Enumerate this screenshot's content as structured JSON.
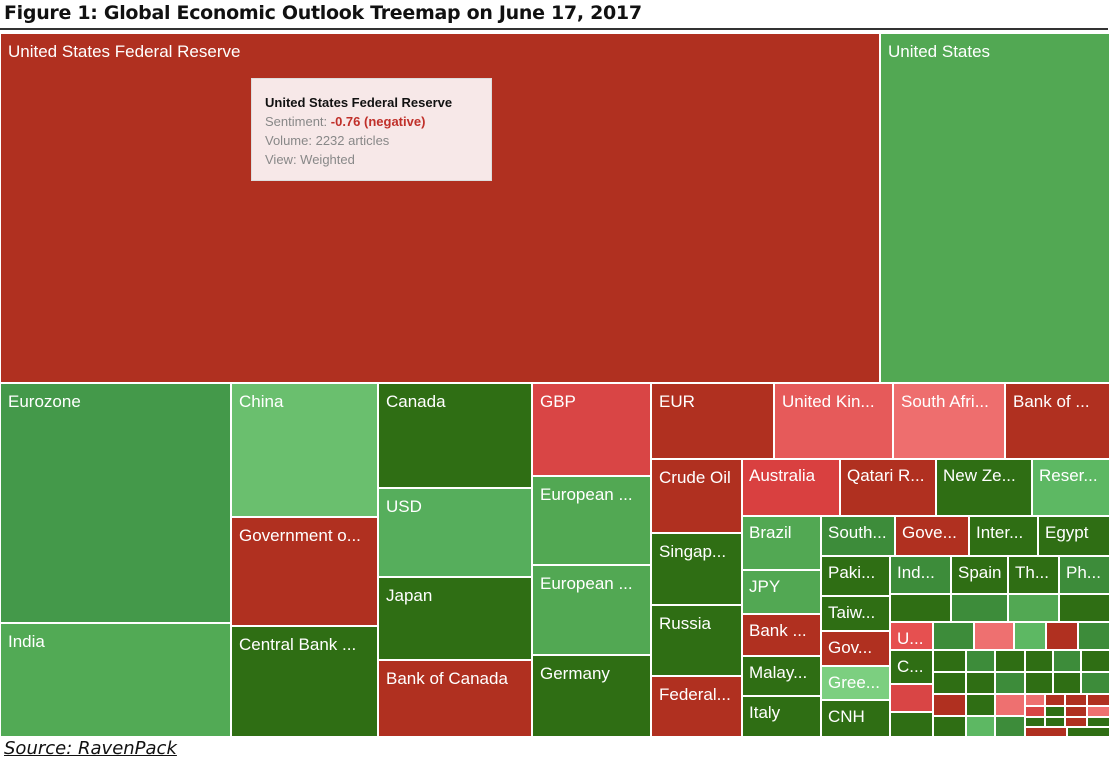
{
  "title": "Figure 1: Global Economic Outlook Treemap on June 17, 2017",
  "source": "Source: RavenPack",
  "tooltip": {
    "name": "United States Federal Reserve",
    "sentiment_label": "Sentiment: ",
    "sentiment_value": "-0.76 (negative)",
    "volume": "Volume: 2232 articles",
    "view": "View: Weighted"
  },
  "chart_data": {
    "type": "treemap",
    "title": "Figure 1: Global Economic Outlook Treemap on June 17, 2017",
    "color_meaning": {
      "red": "negative sentiment",
      "green": "positive sentiment"
    },
    "tiles": [
      {
        "label": "United States Federal Reserve",
        "color": "#b03020"
      },
      {
        "label": "United States",
        "color": "#52a853"
      },
      {
        "label": "Eurozone",
        "color": "#44994a"
      },
      {
        "label": "India",
        "color": "#52aa55"
      },
      {
        "label": "China",
        "color": "#6abf6e"
      },
      {
        "label": "Government o...",
        "color": "#b03020"
      },
      {
        "label": "Central Bank ...",
        "color": "#2f6e14"
      },
      {
        "label": "Canada",
        "color": "#2f6e14"
      },
      {
        "label": "USD",
        "color": "#56ae5c"
      },
      {
        "label": "Japan",
        "color": "#2f6e14"
      },
      {
        "label": "Bank of Canada",
        "color": "#b03020"
      },
      {
        "label": "GBP",
        "color": "#d94545"
      },
      {
        "label": "European ...",
        "color": "#52a853"
      },
      {
        "label": "European ...",
        "color": "#52a853"
      },
      {
        "label": "Germany",
        "color": "#2f6e14"
      },
      {
        "label": "EUR",
        "color": "#b03020"
      },
      {
        "label": "United Kin...",
        "color": "#e65a5a"
      },
      {
        "label": "South Afri...",
        "color": "#ee6e6e"
      },
      {
        "label": "Bank of ...",
        "color": "#b03020"
      },
      {
        "label": "Crude Oil",
        "color": "#b03020"
      },
      {
        "label": "Singap...",
        "color": "#2f6e14"
      },
      {
        "label": "Russia",
        "color": "#2f6e14"
      },
      {
        "label": "Federal...",
        "color": "#b03020"
      },
      {
        "label": "Australia",
        "color": "#d94040"
      },
      {
        "label": "Qatari R...",
        "color": "#b03020"
      },
      {
        "label": "New Ze...",
        "color": "#2f6e14"
      },
      {
        "label": "Reser...",
        "color": "#5db863"
      },
      {
        "label": "Brazil",
        "color": "#52a853"
      },
      {
        "label": "JPY",
        "color": "#52a853"
      },
      {
        "label": "Bank ...",
        "color": "#b03020"
      },
      {
        "label": "Malay...",
        "color": "#2f6e14"
      },
      {
        "label": "Italy",
        "color": "#2f6e14"
      },
      {
        "label": "South...",
        "color": "#3d8c3a"
      },
      {
        "label": "Gove...",
        "color": "#b03020"
      },
      {
        "label": "Inter...",
        "color": "#2f6e14"
      },
      {
        "label": "Egypt",
        "color": "#2f6e14"
      },
      {
        "label": "Paki...",
        "color": "#2f6e14"
      },
      {
        "label": "Taiw...",
        "color": "#2f6e14"
      },
      {
        "label": "Gov...",
        "color": "#b03020"
      },
      {
        "label": "Gree...",
        "color": "#7ccf80"
      },
      {
        "label": "CNH",
        "color": "#2f6e14"
      },
      {
        "label": "Ind...",
        "color": "#3d8c3a"
      },
      {
        "label": "Spain",
        "color": "#2f6e14"
      },
      {
        "label": "Th...",
        "color": "#2f6e14"
      },
      {
        "label": "Ph...",
        "color": "#3d8c3a"
      },
      {
        "label": "",
        "color": "#2f6e14"
      },
      {
        "label": "",
        "color": "#3d8c3a"
      },
      {
        "label": "",
        "color": "#52a853"
      },
      {
        "label": "",
        "color": "#2f6e14"
      },
      {
        "label": "U...",
        "color": "#e65050"
      },
      {
        "label": "",
        "color": "#3d8c3a"
      },
      {
        "label": "",
        "color": "#ee7070"
      },
      {
        "label": "",
        "color": "#5db863"
      },
      {
        "label": "",
        "color": "#b03020"
      },
      {
        "label": "",
        "color": "#3d8c3a"
      },
      {
        "label": "C...",
        "color": "#2f6e14"
      },
      {
        "label": "",
        "color": "#d94545"
      },
      {
        "label": "",
        "color": "#2f6e14"
      },
      {
        "label": "",
        "color": "#2f6e14"
      },
      {
        "label": "",
        "color": "#3d8c3a"
      },
      {
        "label": "",
        "color": "#2f6e14"
      },
      {
        "label": "",
        "color": "#2f6e14"
      },
      {
        "label": "",
        "color": "#3d8c3a"
      },
      {
        "label": "",
        "color": "#2f6e14"
      },
      {
        "label": "",
        "color": "#2f6e14"
      },
      {
        "label": "",
        "color": "#2f6e14"
      },
      {
        "label": "",
        "color": "#3d8c3a"
      },
      {
        "label": "",
        "color": "#2f6e14"
      },
      {
        "label": "",
        "color": "#2f6e14"
      },
      {
        "label": "",
        "color": "#3d8c3a"
      },
      {
        "label": "",
        "color": "#b03020"
      },
      {
        "label": "",
        "color": "#2f6e14"
      },
      {
        "label": "",
        "color": "#ee7070"
      },
      {
        "label": "",
        "color": "#ee7070"
      },
      {
        "label": "",
        "color": "#b03020"
      },
      {
        "label": "",
        "color": "#b03020"
      },
      {
        "label": "",
        "color": "#b03020"
      },
      {
        "label": "",
        "color": "#2f6e14"
      },
      {
        "label": "",
        "color": "#5db863"
      },
      {
        "label": "",
        "color": "#3d8c3a"
      },
      {
        "label": "",
        "color": "#d94545"
      },
      {
        "label": "",
        "color": "#2f6e14"
      },
      {
        "label": "",
        "color": "#b03020"
      },
      {
        "label": "",
        "color": "#ee7070"
      },
      {
        "label": "",
        "color": "#2f6e14"
      },
      {
        "label": "",
        "color": "#2f6e14"
      },
      {
        "label": "",
        "color": "#b03020"
      },
      {
        "label": "",
        "color": "#2f6e14"
      },
      {
        "label": "",
        "color": "#b03020"
      },
      {
        "label": "",
        "color": "#2f6e14"
      }
    ]
  }
}
